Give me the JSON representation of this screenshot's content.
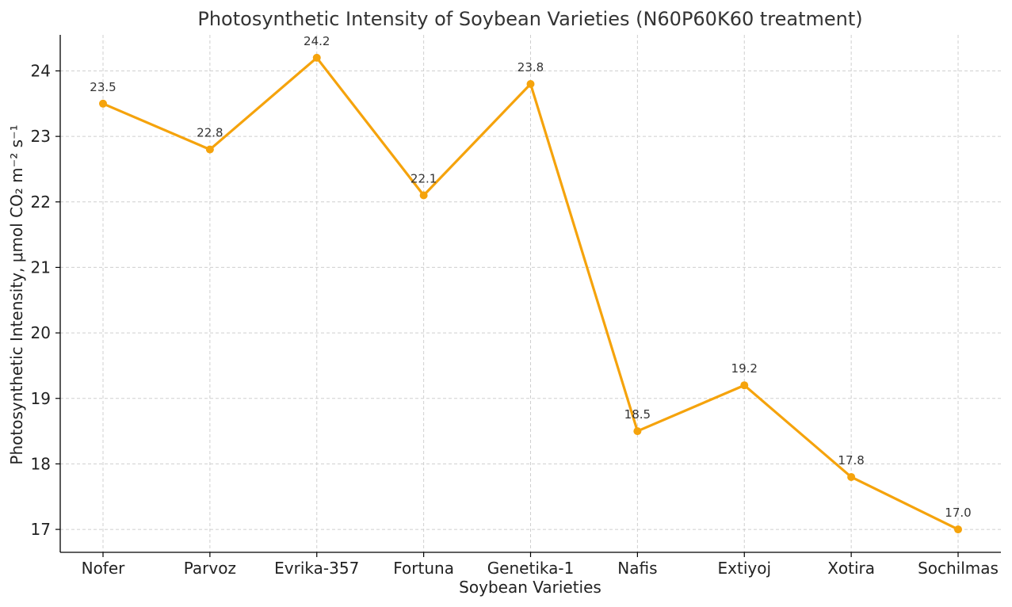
{
  "chart_data": {
    "type": "line",
    "title": "Photosynthetic Intensity of Soybean Varieties (N60P60K60 treatment)",
    "xlabel": "Soybean Varieties",
    "ylabel": "Photosynthetic Intensity, μmol CO₂ m⁻² s⁻¹",
    "categories": [
      "Nofer",
      "Parvoz",
      "Evrika-357",
      "Fortuna",
      "Genetika-1",
      "Nafis",
      "Extiyoj",
      "Xotira",
      "Sochilmas"
    ],
    "series": [
      {
        "values": [
          23.5,
          22.8,
          24.2,
          22.1,
          23.8,
          18.5,
          19.2,
          17.8,
          17.0
        ],
        "labels": [
          "23.5",
          "22.8",
          "24.2",
          "22.1",
          "23.8",
          "18.5",
          "19.2",
          "17.8",
          "17.0"
        ],
        "color": "#f5a30c"
      }
    ],
    "ylim": [
      16.65,
      24.55
    ],
    "yticks": [
      17,
      18,
      19,
      20,
      21,
      22,
      23,
      24
    ],
    "ytick_labels": [
      "17",
      "18",
      "19",
      "20",
      "21",
      "22",
      "23",
      "24"
    ],
    "grid": true,
    "legend": "none"
  }
}
